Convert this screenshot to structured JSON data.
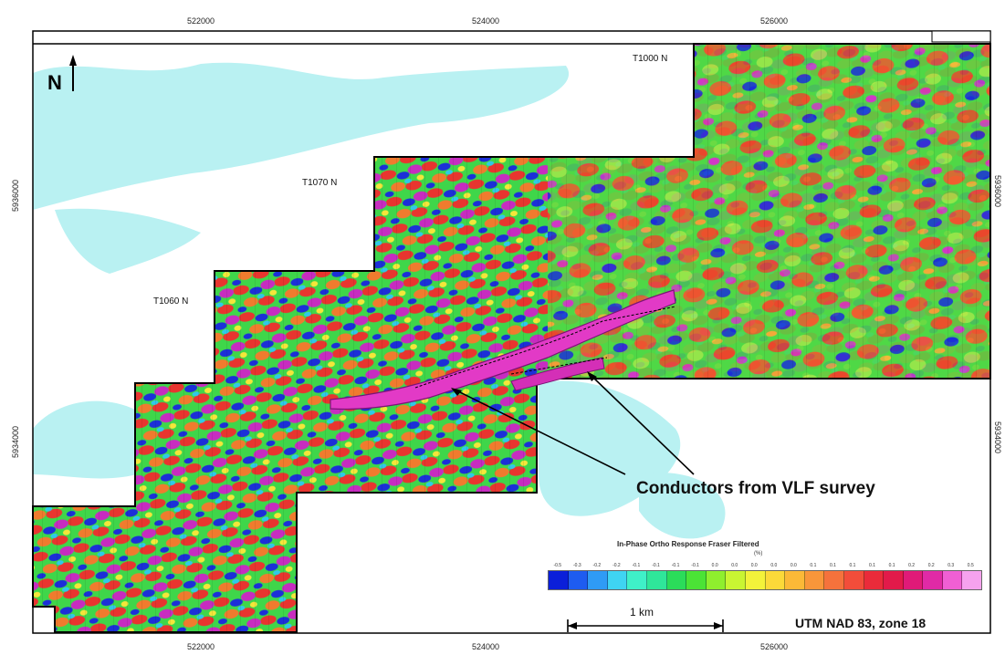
{
  "map": {
    "north_label": "N",
    "top_x_coords": [
      "522000",
      "524000",
      "526000"
    ],
    "bottom_x_coords": [
      "522000",
      "524000",
      "526000"
    ],
    "left_y_coords": [
      "5936000",
      "5934000"
    ],
    "right_y_coords": [
      "5936000",
      "5934000"
    ],
    "tie_lines": [
      "T1000 N",
      "T1070 N",
      "T1060 N"
    ],
    "conductor_label": "Conductors from VLF survey",
    "legend": {
      "title": "In-Phase Ortho Response Fraser Filtered",
      "unit": "(%)",
      "values": [
        "-0.5",
        "-0.3",
        "-0.2",
        "-0.2",
        "-0.1",
        "-0.1",
        "-0.1",
        "-0.1",
        "0.0",
        "0.0",
        "0.0",
        "0.0",
        "0.0",
        "0.1",
        "0.1",
        "0.1",
        "0.1",
        "0.1",
        "0.2",
        "0.2",
        "0.3",
        "0.5"
      ],
      "colors": [
        "#0b1fd9",
        "#1e5cf0",
        "#2f9bf5",
        "#3fd4f2",
        "#3ff0c8",
        "#2fe69a",
        "#2bdc5a",
        "#4be336",
        "#8fef2e",
        "#c9f532",
        "#f3f23a",
        "#fbd939",
        "#fbb937",
        "#f9963a",
        "#f5723c",
        "#f24d3a",
        "#ea2b3a",
        "#e21a4a",
        "#e01a78",
        "#e02aa6",
        "#f05fd4",
        "#f6a2ee"
      ]
    },
    "scale_label": "1 km",
    "projection_label": "UTM NAD 83, zone 18"
  }
}
